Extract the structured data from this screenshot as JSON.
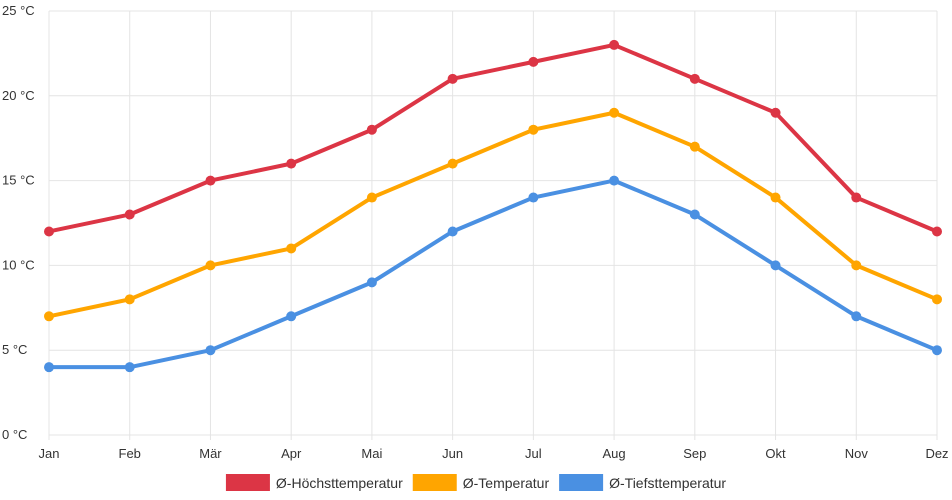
{
  "chart_data": {
    "type": "line",
    "title": "",
    "xlabel": "",
    "ylabel": "",
    "categories": [
      "Jan",
      "Feb",
      "Mär",
      "Apr",
      "Mai",
      "Jun",
      "Jul",
      "Aug",
      "Sep",
      "Okt",
      "Nov",
      "Dez"
    ],
    "y_ticks": [
      0,
      5,
      10,
      15,
      20,
      25
    ],
    "y_tick_labels": [
      "0 °C",
      "5 °C",
      "10 °C",
      "15 °C",
      "20 °C",
      "25 °C"
    ],
    "ylim": [
      0,
      25
    ],
    "grid": true,
    "legend_position": "bottom",
    "series": [
      {
        "name": "Ø-Höchsttemperatur",
        "color": "#dc3545",
        "values": [
          12,
          13,
          15,
          16,
          18,
          21,
          22,
          23,
          21,
          19,
          14,
          12
        ]
      },
      {
        "name": "Ø-Temperatur",
        "color": "#ffa500",
        "values": [
          7,
          8,
          10,
          11,
          14,
          16,
          18,
          19,
          17,
          14,
          10,
          8
        ]
      },
      {
        "name": "Ø-Tiefsttemperatur",
        "color": "#4a90e2",
        "values": [
          4,
          4,
          5,
          7,
          9,
          12,
          14,
          15,
          13,
          10,
          7,
          5
        ]
      }
    ]
  }
}
